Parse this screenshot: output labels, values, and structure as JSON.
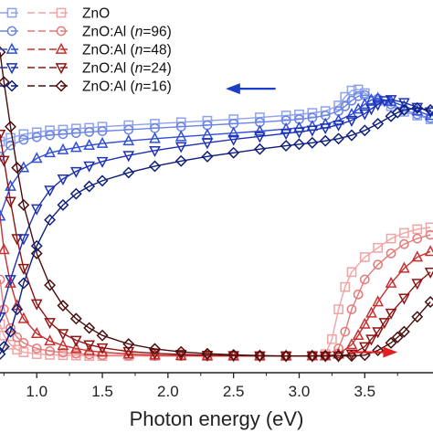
{
  "chart_data": {
    "type": "line",
    "xlabel": "Photon energy (eV)",
    "ylabel": "",
    "xlim": [
      0.72,
      4.02
    ],
    "ylim": [
      0,
      1
    ],
    "xticks": [
      1.0,
      1.5,
      2.0,
      2.5,
      3.0,
      3.5
    ],
    "xtick_labels": [
      "1.0",
      "1.5",
      "2.0",
      "2.5",
      "3.0",
      "3.5"
    ],
    "grid": false,
    "legend_position": "top-left",
    "annotations": [
      {
        "type": "arrow",
        "direction": "left",
        "color": "#1b3ec9",
        "meaning": "left axis"
      },
      {
        "type": "arrow",
        "direction": "right",
        "color": "#e02020",
        "meaning": "right axis"
      }
    ],
    "series": [
      {
        "name": "ZnO",
        "marker": "square",
        "color_blue": "#8ea2ee",
        "color_red": "#f2a3a3",
        "blue": {
          "x": [
            0.72,
            0.8,
            0.9,
            1.0,
            1.1,
            1.2,
            1.3,
            1.4,
            1.5,
            1.7,
            1.9,
            2.1,
            2.3,
            2.5,
            2.7,
            2.9,
            3.0,
            3.1,
            3.2,
            3.3,
            3.35,
            3.4,
            3.45,
            3.5,
            3.6,
            3.7,
            3.8,
            3.9,
            4.0
          ],
          "y": [
            0.62,
            0.63,
            0.64,
            0.645,
            0.65,
            0.652,
            0.655,
            0.657,
            0.66,
            0.664,
            0.668,
            0.672,
            0.676,
            0.68,
            0.685,
            0.69,
            0.693,
            0.697,
            0.702,
            0.717,
            0.74,
            0.757,
            0.76,
            0.75,
            0.73,
            0.715,
            0.7,
            0.69,
            0.68
          ]
        },
        "red": {
          "x": [
            0.72,
            0.75,
            0.8,
            0.85,
            0.9,
            1.0,
            1.1,
            1.2,
            1.3,
            1.4,
            1.5,
            1.7,
            1.9,
            2.1,
            2.3,
            2.5,
            2.7,
            2.9,
            3.1,
            3.2,
            3.25,
            3.3,
            3.35,
            3.4,
            3.5,
            3.6,
            3.7,
            3.8,
            3.9,
            4.0
          ],
          "y": [
            0.13,
            0.1,
            0.075,
            0.062,
            0.055,
            0.05,
            0.048,
            0.047,
            0.046,
            0.045,
            0.045,
            0.045,
            0.045,
            0.045,
            0.045,
            0.045,
            0.045,
            0.045,
            0.046,
            0.05,
            0.09,
            0.17,
            0.23,
            0.27,
            0.31,
            0.335,
            0.36,
            0.375,
            0.385,
            0.39
          ]
        }
      },
      {
        "name": "ZnO:Al (n=96)",
        "name_main": "ZnO:Al (",
        "name_italic": "n",
        "name_rest": "=96)",
        "marker": "circle",
        "color_blue": "#6a84e6",
        "color_red": "#e57a7a",
        "blue": {
          "x": [
            0.72,
            0.8,
            0.9,
            1.0,
            1.1,
            1.2,
            1.3,
            1.4,
            1.5,
            1.7,
            1.9,
            2.1,
            2.3,
            2.5,
            2.7,
            2.9,
            3.0,
            3.1,
            3.2,
            3.3,
            3.35,
            3.4,
            3.45,
            3.5,
            3.6,
            3.7,
            3.8,
            3.9,
            4.0
          ],
          "y": [
            0.58,
            0.61,
            0.625,
            0.632,
            0.637,
            0.64,
            0.643,
            0.646,
            0.648,
            0.652,
            0.656,
            0.66,
            0.664,
            0.668,
            0.672,
            0.677,
            0.68,
            0.684,
            0.69,
            0.702,
            0.715,
            0.73,
            0.742,
            0.745,
            0.735,
            0.72,
            0.705,
            0.693,
            0.683
          ]
        },
        "red": {
          "x": [
            0.72,
            0.75,
            0.8,
            0.85,
            0.9,
            1.0,
            1.1,
            1.2,
            1.3,
            1.4,
            1.5,
            1.7,
            1.9,
            2.1,
            2.3,
            2.5,
            2.7,
            2.9,
            3.1,
            3.2,
            3.3,
            3.35,
            3.4,
            3.45,
            3.5,
            3.6,
            3.7,
            3.8,
            3.9,
            4.0
          ],
          "y": [
            0.25,
            0.17,
            0.12,
            0.095,
            0.08,
            0.065,
            0.058,
            0.054,
            0.051,
            0.049,
            0.047,
            0.046,
            0.045,
            0.045,
            0.045,
            0.045,
            0.045,
            0.045,
            0.045,
            0.046,
            0.065,
            0.11,
            0.17,
            0.21,
            0.25,
            0.29,
            0.32,
            0.345,
            0.36,
            0.37
          ]
        }
      },
      {
        "name": "ZnO:Al (n=48)",
        "name_main": "ZnO:Al (",
        "name_italic": "n",
        "name_rest": "=48)",
        "marker": "triangle-up",
        "color_blue": "#2f4ed8",
        "color_red": "#c83030",
        "blue": {
          "x": [
            0.72,
            0.8,
            0.9,
            1.0,
            1.1,
            1.2,
            1.3,
            1.4,
            1.5,
            1.7,
            1.9,
            2.1,
            2.3,
            2.5,
            2.7,
            2.9,
            3.0,
            3.1,
            3.2,
            3.3,
            3.4,
            3.45,
            3.5,
            3.55,
            3.6,
            3.7,
            3.8,
            3.9,
            4.0
          ],
          "y": [
            0.42,
            0.5,
            0.55,
            0.575,
            0.59,
            0.598,
            0.604,
            0.61,
            0.615,
            0.622,
            0.628,
            0.633,
            0.638,
            0.643,
            0.648,
            0.654,
            0.657,
            0.661,
            0.667,
            0.677,
            0.693,
            0.707,
            0.72,
            0.732,
            0.736,
            0.728,
            0.715,
            0.702,
            0.69
          ]
        },
        "red": {
          "x": [
            0.72,
            0.75,
            0.8,
            0.85,
            0.9,
            1.0,
            1.1,
            1.2,
            1.3,
            1.4,
            1.5,
            1.7,
            1.9,
            2.1,
            2.3,
            2.5,
            2.7,
            2.9,
            3.1,
            3.2,
            3.3,
            3.4,
            3.45,
            3.5,
            3.55,
            3.6,
            3.7,
            3.8,
            3.9,
            4.0
          ],
          "y": [
            0.42,
            0.33,
            0.24,
            0.18,
            0.145,
            0.105,
            0.085,
            0.073,
            0.065,
            0.059,
            0.055,
            0.05,
            0.047,
            0.046,
            0.045,
            0.045,
            0.045,
            0.045,
            0.045,
            0.045,
            0.05,
            0.075,
            0.1,
            0.13,
            0.16,
            0.19,
            0.24,
            0.28,
            0.31,
            0.325
          ]
        }
      },
      {
        "name": "ZnO:Al (n=24)",
        "name_main": "ZnO:Al (",
        "name_italic": "n",
        "name_rest": "=24)",
        "marker": "triangle-down",
        "color_blue": "#1d32b4",
        "color_red": "#8e1414",
        "blue": {
          "x": [
            0.72,
            0.8,
            0.9,
            1.0,
            1.1,
            1.2,
            1.3,
            1.4,
            1.5,
            1.7,
            1.9,
            2.1,
            2.3,
            2.5,
            2.7,
            2.9,
            3.0,
            3.1,
            3.2,
            3.3,
            3.4,
            3.5,
            3.55,
            3.6,
            3.65,
            3.7,
            3.8,
            3.9,
            4.0
          ],
          "y": [
            0.15,
            0.25,
            0.36,
            0.44,
            0.49,
            0.52,
            0.54,
            0.555,
            0.567,
            0.583,
            0.596,
            0.607,
            0.617,
            0.626,
            0.634,
            0.642,
            0.646,
            0.651,
            0.657,
            0.665,
            0.677,
            0.695,
            0.708,
            0.72,
            0.73,
            0.733,
            0.725,
            0.712,
            0.7
          ]
        },
        "red": {
          "x": [
            0.72,
            0.75,
            0.8,
            0.85,
            0.9,
            1.0,
            1.1,
            1.2,
            1.3,
            1.4,
            1.5,
            1.7,
            1.9,
            2.1,
            2.3,
            2.5,
            2.7,
            2.9,
            3.1,
            3.2,
            3.3,
            3.4,
            3.5,
            3.55,
            3.6,
            3.65,
            3.7,
            3.8,
            3.9,
            4.0
          ],
          "y": [
            0.64,
            0.57,
            0.46,
            0.36,
            0.28,
            0.185,
            0.135,
            0.105,
            0.087,
            0.075,
            0.067,
            0.057,
            0.052,
            0.049,
            0.047,
            0.046,
            0.045,
            0.045,
            0.045,
            0.045,
            0.045,
            0.05,
            0.07,
            0.09,
            0.11,
            0.135,
            0.16,
            0.2,
            0.24,
            0.27
          ]
        }
      },
      {
        "name": "ZnO:Al (n=16)",
        "name_main": "ZnO:Al (",
        "name_italic": "n",
        "name_rest": "=16)",
        "marker": "diamond",
        "color_blue": "#0e1f7a",
        "color_red": "#4a0d0d",
        "blue": {
          "x": [
            0.72,
            0.75,
            0.8,
            0.85,
            0.9,
            1.0,
            1.1,
            1.2,
            1.3,
            1.4,
            1.5,
            1.7,
            1.9,
            2.1,
            2.3,
            2.5,
            2.7,
            2.9,
            3.0,
            3.1,
            3.2,
            3.3,
            3.4,
            3.5,
            3.6,
            3.7,
            3.75,
            3.8,
            3.9,
            4.0
          ],
          "y": [
            0.05,
            0.07,
            0.11,
            0.17,
            0.24,
            0.34,
            0.41,
            0.45,
            0.48,
            0.5,
            0.515,
            0.537,
            0.554,
            0.568,
            0.58,
            0.59,
            0.6,
            0.609,
            0.613,
            0.617,
            0.622,
            0.628,
            0.637,
            0.65,
            0.668,
            0.688,
            0.698,
            0.705,
            0.71,
            0.705
          ]
        },
        "red": {
          "x": [
            0.72,
            0.75,
            0.8,
            0.85,
            0.9,
            1.0,
            1.1,
            1.2,
            1.3,
            1.4,
            1.5,
            1.7,
            1.9,
            2.1,
            2.3,
            2.5,
            2.7,
            2.9,
            3.1,
            3.2,
            3.3,
            3.4,
            3.5,
            3.6,
            3.7,
            3.75,
            3.8,
            3.9,
            4.0
          ],
          "y": [
            0.86,
            0.78,
            0.66,
            0.55,
            0.45,
            0.32,
            0.235,
            0.18,
            0.145,
            0.12,
            0.1,
            0.077,
            0.064,
            0.056,
            0.051,
            0.048,
            0.046,
            0.045,
            0.045,
            0.045,
            0.045,
            0.045,
            0.047,
            0.06,
            0.08,
            0.095,
            0.11,
            0.15,
            0.19
          ]
        }
      }
    ]
  }
}
